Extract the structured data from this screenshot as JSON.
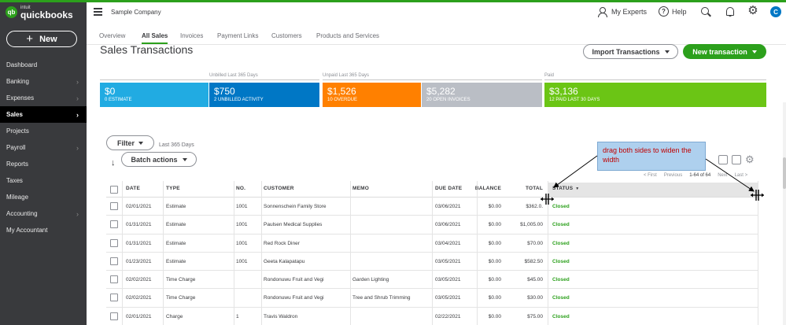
{
  "app": {
    "logo_intuit": "intuit",
    "logo_name": "quickbooks",
    "logo_mark": "qb",
    "company": "Sample Company"
  },
  "sidebar": {
    "new_label": "New",
    "items": [
      {
        "label": "Dashboard",
        "chevron": false,
        "active": false
      },
      {
        "label": "Banking",
        "chevron": true,
        "active": false
      },
      {
        "label": "Expenses",
        "chevron": true,
        "active": false
      },
      {
        "label": "Sales",
        "chevron": true,
        "active": true
      },
      {
        "label": "Projects",
        "chevron": false,
        "active": false
      },
      {
        "label": "Payroll",
        "chevron": true,
        "active": false
      },
      {
        "label": "Reports",
        "chevron": false,
        "active": false
      },
      {
        "label": "Taxes",
        "chevron": false,
        "active": false
      },
      {
        "label": "Mileage",
        "chevron": false,
        "active": false
      },
      {
        "label": "Accounting",
        "chevron": true,
        "active": false
      },
      {
        "label": "My Accountant",
        "chevron": false,
        "active": false
      }
    ]
  },
  "header": {
    "my_experts": "My Experts",
    "help": "Help",
    "help_glyph": "?",
    "avatar_initial": "C"
  },
  "tabs": [
    {
      "label": "Overview",
      "active": false
    },
    {
      "label": "All Sales",
      "active": true
    },
    {
      "label": "Invoices",
      "active": false
    },
    {
      "label": "Payment Links",
      "active": false
    },
    {
      "label": "Customers",
      "active": false
    },
    {
      "label": "Products and Services",
      "active": false
    }
  ],
  "page": {
    "title": "Sales Transactions",
    "import_label": "Import Transactions",
    "new_transaction_label": "New transaction"
  },
  "summary": {
    "unbilled_label": "Unbilled Last 365 Days",
    "unpaid_label": "Unpaid Last 365 Days",
    "paid_label": "Paid",
    "blocks": [
      {
        "amount": "$0",
        "caption": "0 ESTIMATE",
        "color": "#21abe2"
      },
      {
        "amount": "$750",
        "caption": "2 UNBILLED ACTIVITY",
        "color": "#0077c5"
      },
      {
        "amount": "$1,526",
        "caption": "10 OVERDUE",
        "color": "#ff8000"
      },
      {
        "amount": "$5,282",
        "caption": "20 OPEN INVOICES",
        "color": "#babec5"
      },
      {
        "amount": "$3,136",
        "caption": "12 PAID LAST 30 DAYS",
        "color": "#6bc515"
      }
    ]
  },
  "filters": {
    "filter_label": "Filter",
    "date_range": "Last 365 Days",
    "batch_label": "Batch actions"
  },
  "pager": {
    "first": "< First",
    "previous": "Previous",
    "count": "1-64 of 64",
    "next": "Next",
    "last": "Last >"
  },
  "annotation": {
    "text": "drag both sides to widen the width"
  },
  "table": {
    "columns": [
      "DATE",
      "TYPE",
      "NO.",
      "CUSTOMER",
      "MEMO",
      "DUE DATE",
      "BALANCE",
      "TOTAL",
      "STATUS"
    ],
    "sort_caret": "▼",
    "rows": [
      {
        "date": "02/01/2021",
        "type": "Estimate",
        "no": "1001",
        "customer": "Sonnenschein Family Store",
        "memo": "",
        "due": "03/06/2021",
        "balance": "$0.00",
        "total": "$362.0.",
        "status": "Closed"
      },
      {
        "date": "01/31/2021",
        "type": "Estimate",
        "no": "1001",
        "customer": "Paulsen Medical Supplies",
        "memo": "",
        "due": "03/06/2021",
        "balance": "$0.00",
        "total": "$1,005.00",
        "status": "Closed"
      },
      {
        "date": "01/31/2021",
        "type": "Estimate",
        "no": "1001",
        "customer": "Red Rock Diner",
        "memo": "",
        "due": "03/04/2021",
        "balance": "$0.00",
        "total": "$70.00",
        "status": "Closed"
      },
      {
        "date": "01/23/2021",
        "type": "Estimate",
        "no": "1001",
        "customer": "Geeta Kalapatapu",
        "memo": "",
        "due": "03/05/2021",
        "balance": "$0.00",
        "total": "$582.50",
        "status": "Closed"
      },
      {
        "date": "02/02/2021",
        "type": "Time Charge",
        "no": "",
        "customer": "Rondonuwu Fruit and Vegi",
        "memo": "Garden Lighting",
        "due": "03/05/2021",
        "balance": "$0.00",
        "total": "$45.00",
        "status": "Closed"
      },
      {
        "date": "02/02/2021",
        "type": "Time Charge",
        "no": "",
        "customer": "Rondonuwu Fruit and Vegi",
        "memo": "Tree and Shrub Trimming",
        "due": "03/05/2021",
        "balance": "$0.00",
        "total": "$30.00",
        "status": "Closed"
      },
      {
        "date": "02/01/2021",
        "type": "Charge",
        "no": "1",
        "customer": "Travis Waldron",
        "memo": "",
        "due": "02/22/2021",
        "balance": "$0.00",
        "total": "$75.00",
        "status": "Closed"
      }
    ]
  }
}
